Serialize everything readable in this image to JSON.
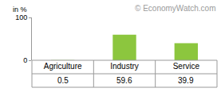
{
  "chart_data": {
    "type": "bar",
    "ylabel": "in %",
    "annotations": [
      "© EconomyWatch.com"
    ],
    "categories": [
      "Agriculture",
      "Industry",
      "Service"
    ],
    "values": [
      0.5,
      59.6,
      39.9
    ],
    "color": "#8cc63e",
    "ylim": [
      0,
      100
    ],
    "yticks": [
      0,
      100
    ],
    "grid": false,
    "data_labels": true
  }
}
